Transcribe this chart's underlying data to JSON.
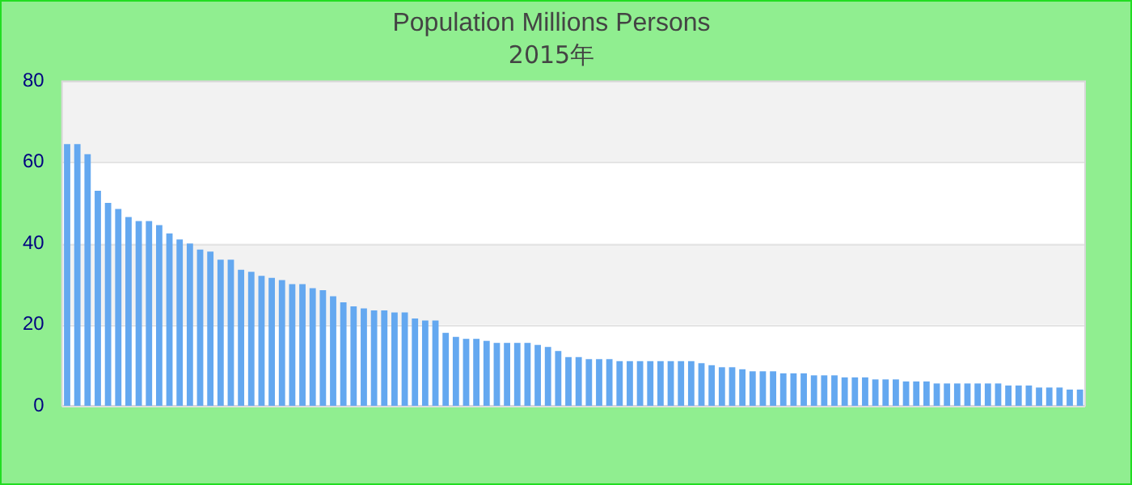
{
  "chart_data": {
    "type": "bar",
    "title": "Population Millions Persons",
    "subtitle": "2015年",
    "categories": [
      null,
      null,
      null,
      null,
      null,
      null,
      null,
      null,
      null,
      null,
      null,
      null,
      null,
      null,
      null,
      null,
      null,
      null,
      null,
      null,
      null,
      null,
      null,
      null,
      null,
      null,
      null,
      null,
      null,
      null,
      null,
      null,
      null,
      null,
      null,
      null,
      null,
      null,
      null,
      null,
      null,
      null,
      null,
      null,
      null,
      null,
      null,
      null,
      null,
      null,
      null,
      null,
      null,
      null,
      null,
      null,
      null,
      null,
      null,
      null,
      null,
      null,
      null,
      null,
      null,
      null,
      null,
      null,
      null,
      null,
      null,
      null,
      null,
      null,
      null,
      null,
      null,
      null,
      null,
      null,
      null,
      null,
      null,
      null,
      null,
      null,
      null,
      null,
      null,
      null,
      null,
      null,
      null,
      null,
      null,
      null,
      null,
      null,
      null,
      null
    ],
    "values": [
      64.5,
      64.5,
      62,
      53,
      50,
      48.5,
      46.5,
      45.5,
      45.5,
      44.5,
      42.5,
      41,
      40,
      38.5,
      38,
      36,
      36,
      33.5,
      33,
      32,
      31.5,
      31,
      30,
      30,
      29,
      28.5,
      27,
      25.5,
      24.5,
      24,
      23.5,
      23.5,
      23,
      23,
      21.5,
      21,
      21,
      18,
      17,
      16.5,
      16.5,
      16,
      15.5,
      15.5,
      15.5,
      15.5,
      15,
      14.5,
      13.5,
      12,
      12,
      11.5,
      11.5,
      11.5,
      11,
      11,
      11,
      11,
      11,
      11,
      11,
      11,
      10.5,
      10,
      9.5,
      9.5,
      9,
      8.5,
      8.5,
      8.5,
      8,
      8,
      8,
      7.5,
      7.5,
      7.5,
      7,
      7,
      7,
      6.5,
      6.5,
      6.5,
      6,
      6,
      6,
      5.5,
      5.5,
      5.5,
      5.5,
      5.5,
      5.5,
      5.5,
      5,
      5,
      5,
      4.5,
      4.5,
      4.5,
      4,
      4
    ],
    "color": "#64a8f0",
    "ylim": [
      0,
      80
    ],
    "yticks": [
      0,
      20,
      40,
      60,
      80
    ],
    "grid": "y",
    "tick_labels": "y"
  }
}
